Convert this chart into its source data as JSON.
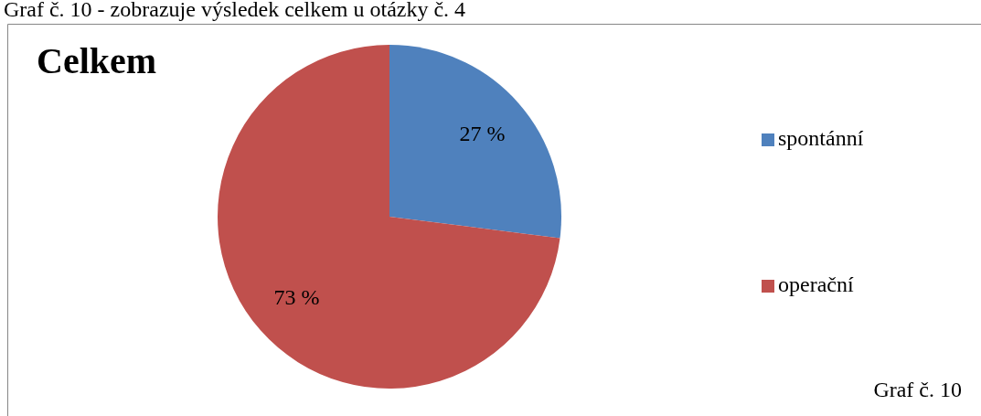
{
  "chart_data": {
    "type": "pie",
    "title": "Celkem",
    "categories": [
      "spontánní",
      "operační"
    ],
    "values": [
      27,
      73
    ],
    "colors": [
      "#4f81bd",
      "#c0504d"
    ],
    "value_labels": [
      "27 %",
      "73 %"
    ],
    "legend": "right",
    "annotations": [
      "Graf č. 10 - zobrazuje výsledek celkem u otázky č. 4",
      "Graf č. 10"
    ]
  }
}
